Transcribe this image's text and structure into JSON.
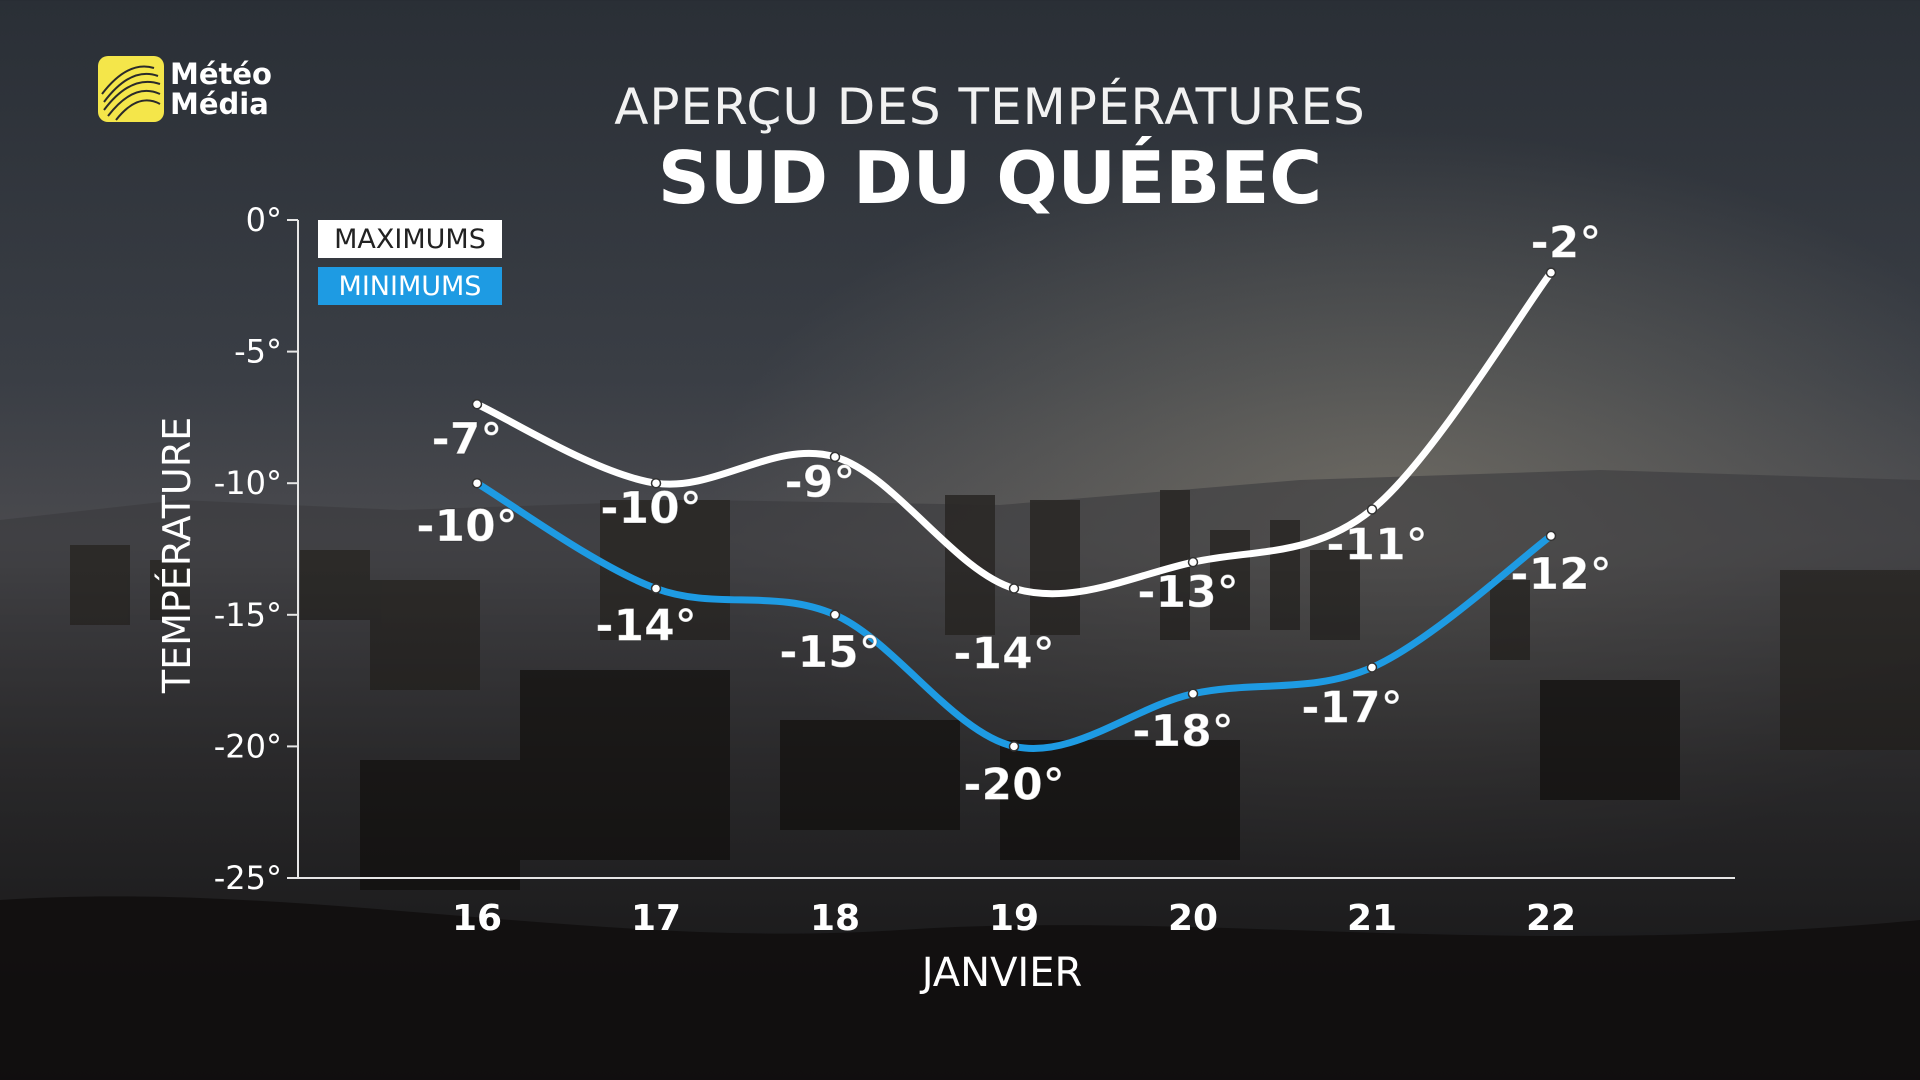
{
  "brand": {
    "line1": "Météo",
    "line2": "Média"
  },
  "title": "APERÇU DES TEMPÉRATURES",
  "subtitle": "SUD DU QUÉBEC",
  "legend": {
    "max": "MAXIMUMS",
    "min": "MINIMUMS"
  },
  "colors": {
    "max": "#ffffff",
    "min": "#1e9be3"
  },
  "chart_data": {
    "type": "line",
    "title": "APERÇU DES TEMPÉRATURES",
    "subtitle": "SUD DU QUÉBEC",
    "xlabel": "JANVIER",
    "ylabel": "TEMPÉRATURE",
    "categories": [
      "16",
      "17",
      "18",
      "19",
      "20",
      "21",
      "22"
    ],
    "ylim": [
      -25,
      0
    ],
    "yticks": [
      0,
      -5,
      -10,
      -15,
      -20,
      -25
    ],
    "ytick_labels": [
      "0°",
      "-5°",
      "-10°",
      "-15°",
      "-20°",
      "-25°"
    ],
    "grid": false,
    "legend_position": "top-left",
    "series": [
      {
        "name": "MAXIMUMS",
        "values": [
          -7,
          -10,
          -9,
          -14,
          -13,
          -11,
          -2
        ],
        "labels": [
          "-7°",
          "-10°",
          "-9°",
          "-14°",
          "-13°",
          "-11°",
          "-2°"
        ]
      },
      {
        "name": "MINIMUMS",
        "values": [
          -10,
          -14,
          -15,
          -20,
          -18,
          -17,
          -12
        ],
        "labels": [
          "-10°",
          "-14°",
          "-15°",
          "-20°",
          "-18°",
          "-17°",
          "-12°"
        ]
      }
    ]
  }
}
